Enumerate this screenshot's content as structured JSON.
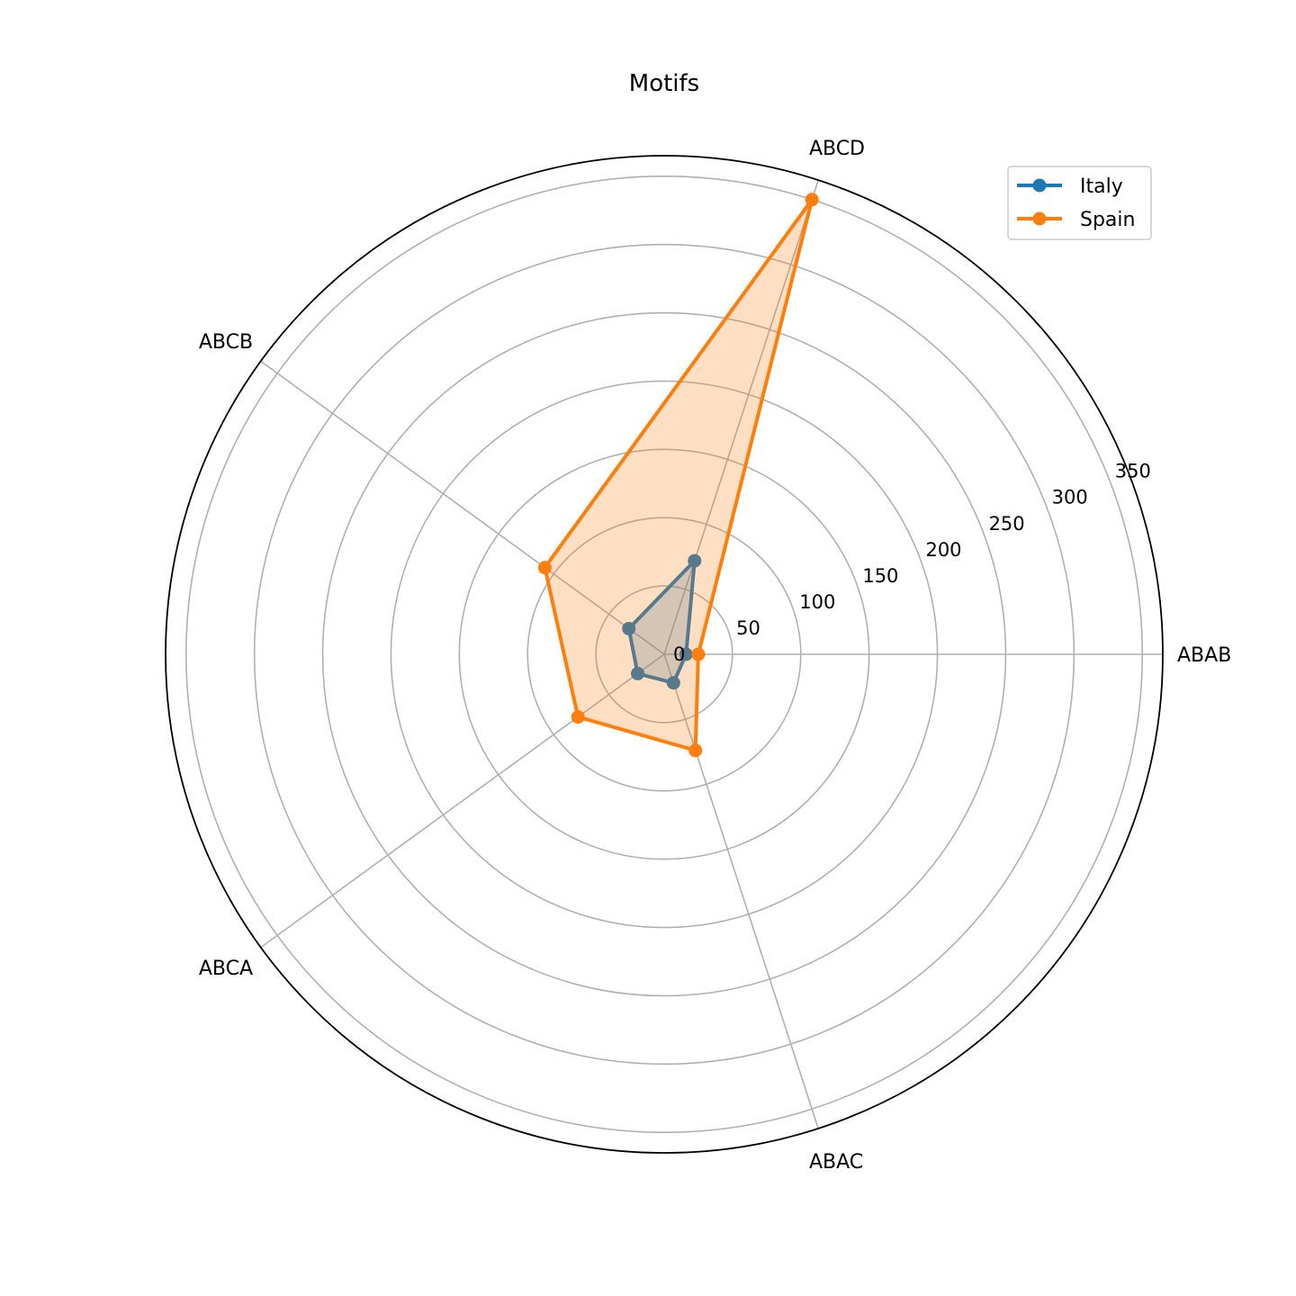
{
  "chart_data": {
    "type": "radar",
    "title": "Motifs",
    "categories": [
      "ABAB",
      "ABCD",
      "ABCB",
      "ABCA",
      "ABAC"
    ],
    "rlim": [
      0,
      365
    ],
    "rticks": [
      0,
      50,
      100,
      150,
      200,
      250,
      300,
      350
    ],
    "rtick_labels": [
      "0",
      "50",
      "100",
      "150",
      "200",
      "250",
      "300",
      "350"
    ],
    "grid": true,
    "legend_position": "top-right",
    "series": [
      {
        "name": "Italy",
        "color": "#1f77b4",
        "values": [
          16,
          72,
          32,
          24,
          22
        ]
      },
      {
        "name": "Spain",
        "color": "#ff7f0e",
        "values": [
          25,
          350,
          108,
          78,
          74
        ]
      }
    ]
  }
}
